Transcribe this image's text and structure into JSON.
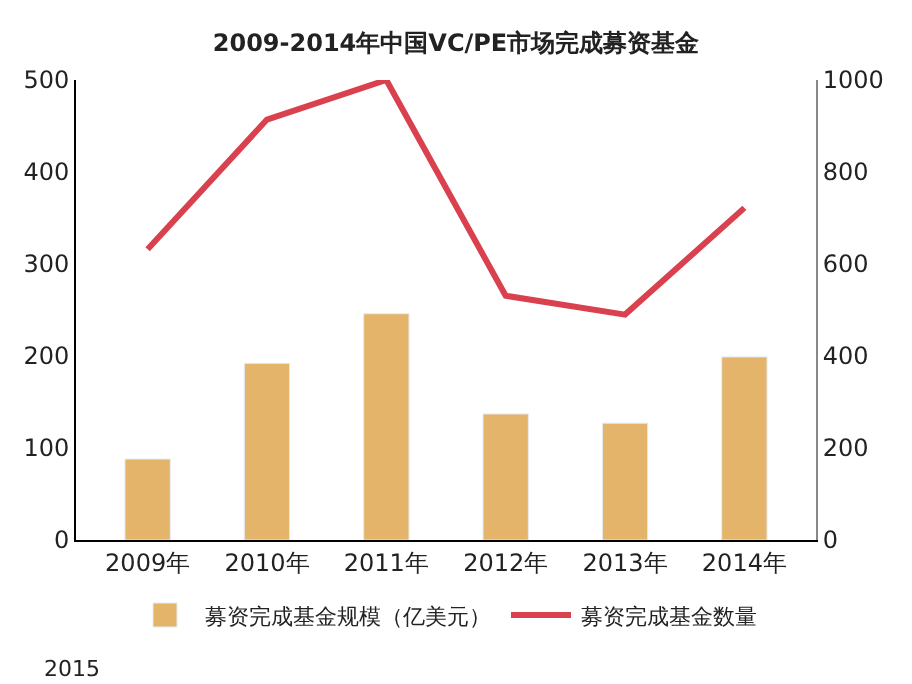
{
  "chart_data": {
    "type": "bar",
    "title": "2009-2014年中国VC/PE市场完成募资基金",
    "categories": [
      "2009年",
      "2010年",
      "2011年",
      "2012年",
      "2013年",
      "2014年"
    ],
    "series": [
      {
        "name": "募资完成基金规模（亿美元）",
        "color": "#e3b46a",
        "values": [
          88,
          192,
          246,
          137,
          127,
          199
        ]
      },
      {
        "name": "募资完成基金数量",
        "type": "line",
        "axis": "y2",
        "color": "#d9414e",
        "values": [
          632,
          914,
          1000,
          531,
          490,
          722
        ]
      }
    ],
    "ylim": [
      0,
      500
    ],
    "yticks": [
      0,
      100,
      200,
      300,
      400,
      500
    ],
    "y2lim": [
      0,
      1000
    ],
    "y2ticks": [
      0,
      200,
      400,
      600,
      800,
      1000
    ],
    "legend": "bottom",
    "marker": "none",
    "annotations": [
      "2015"
    ]
  }
}
